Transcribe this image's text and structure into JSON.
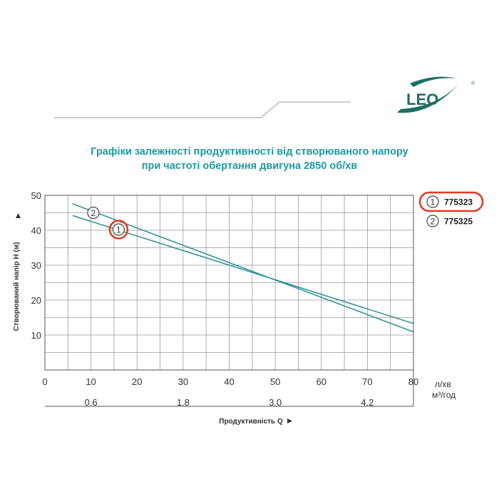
{
  "brand": {
    "logo_text": "LEO",
    "registered_mark": "®"
  },
  "header": {
    "title_line1": "Графіки залежності продуктивності від створюваного напору",
    "title_line2": "при частоті обертання двигуна 2850 об/хв"
  },
  "colors": {
    "title": "#1a9aa3",
    "curves": "#2a8f93",
    "highlight": "#e03a22",
    "logo": "#1d6e62"
  },
  "chart_data": {
    "type": "line",
    "xlabel": "Продуктивність  Q",
    "ylabel": "Створюваний напір H (м)",
    "x_unit_primary": "л/хв",
    "x_unit_secondary": "м³/год",
    "xlim": [
      0,
      80
    ],
    "ylim": [
      0,
      50
    ],
    "x_ticks": [
      0,
      10,
      20,
      30,
      40,
      50,
      60,
      70,
      80
    ],
    "x_ticks_secondary": [
      {
        "value": 0.6,
        "label": "0.6"
      },
      {
        "value": 1.8,
        "label": "1.8"
      },
      {
        "value": 3.0,
        "label": "3.0"
      },
      {
        "value": 4.2,
        "label": "4.2"
      }
    ],
    "y_ticks": [
      10,
      20,
      30,
      40,
      50
    ],
    "grid": true,
    "legend_position": "right",
    "series": [
      {
        "name": "775323",
        "marker": "1",
        "highlighted": true,
        "points": [
          [
            6,
            44.2
          ],
          [
            80,
            13.3
          ]
        ]
      },
      {
        "name": "775325",
        "marker": "2",
        "highlighted": false,
        "points": [
          [
            6,
            47.6
          ],
          [
            80,
            10.9
          ]
        ]
      }
    ],
    "curve_markers": [
      {
        "label": "2",
        "x": 10.5,
        "y": 45.0,
        "highlighted": false
      },
      {
        "label": "1",
        "x": 16,
        "y": 40.2,
        "highlighted": true
      }
    ]
  }
}
